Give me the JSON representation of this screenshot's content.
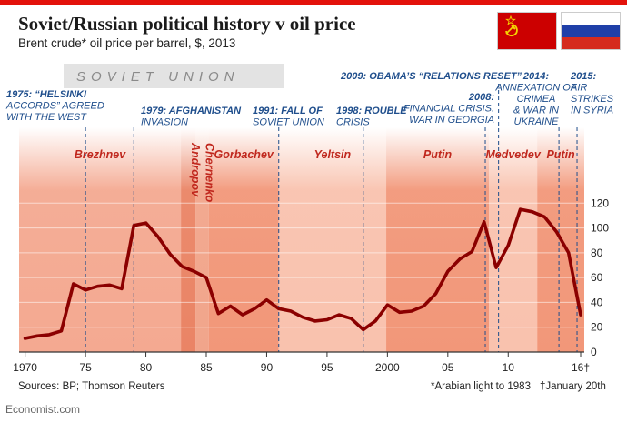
{
  "title": "Soviet/Russian political history v oil price",
  "subtitle": "Brent crude* oil price per barrel, $, 2013",
  "soviet_union_label": "SOVIET UNION",
  "sources": "Sources: BP; Thomson Reuters",
  "footnote_arabian": "*Arabian light to 1983",
  "footnote_january": "†January 20th",
  "publisher": "Economist.com",
  "colors": {
    "line": "#8b0000",
    "annotation": "#1f4e8c",
    "era_label": "#c0281e",
    "soviet_band": "#d9d9d9"
  },
  "chart_data": {
    "type": "line",
    "title": "Soviet/Russian political history v oil price",
    "xlabel": "",
    "ylabel": "Brent crude oil price per barrel, $, 2013",
    "xlim": [
      1969.5,
      2016.3
    ],
    "ylim": [
      0,
      140
    ],
    "x_ticks": [
      1970,
      1975,
      1980,
      1985,
      1990,
      1995,
      2000,
      2005,
      2010,
      2016
    ],
    "x_tick_labels": [
      "1970",
      "75",
      "80",
      "85",
      "90",
      "95",
      "2000",
      "05",
      "10",
      "16†"
    ],
    "y_ticks": [
      0,
      20,
      40,
      60,
      80,
      100,
      120
    ],
    "y_tick_labels": [
      "0",
      "20",
      "40",
      "60",
      "80",
      "100",
      "120"
    ],
    "series": [
      {
        "name": "Brent crude oil price",
        "x": [
          1970,
          1971,
          1972,
          1973,
          1974,
          1975,
          1976,
          1977,
          1978,
          1979,
          1980,
          1981,
          1982,
          1983,
          1984,
          1985,
          1986,
          1987,
          1988,
          1989,
          1990,
          1991,
          1992,
          1993,
          1994,
          1995,
          1996,
          1997,
          1998,
          1999,
          2000,
          2001,
          2002,
          2003,
          2004,
          2005,
          2006,
          2007,
          2008,
          2009,
          2010,
          2011,
          2012,
          2013,
          2014,
          2015,
          2016
        ],
        "values": [
          11,
          13,
          14,
          17,
          55,
          50,
          53,
          54,
          51,
          102,
          104,
          93,
          79,
          69,
          65,
          60,
          31,
          37,
          30,
          35,
          42,
          35,
          33,
          28,
          25,
          26,
          30,
          27,
          18,
          25,
          38,
          32,
          33,
          37,
          47,
          65,
          75,
          81,
          105,
          68,
          86,
          115,
          113,
          109,
          97,
          80,
          30
        ]
      }
    ],
    "eras": [
      {
        "label": "Brezhnev",
        "from": 1969.5,
        "to": 1982.9
      },
      {
        "label": "Andropov",
        "from": 1982.9,
        "to": 1984.1
      },
      {
        "label": "Chernenko",
        "from": 1984.1,
        "to": 1985.2
      },
      {
        "label": "Gorbachev",
        "from": 1985.2,
        "to": 1991.0
      },
      {
        "label": "Yeltsin",
        "from": 1991.0,
        "to": 1999.9
      },
      {
        "label": "Putin",
        "from": 1999.9,
        "to": 2008.4
      },
      {
        "label": "Medvedev",
        "from": 2008.4,
        "to": 2012.4
      },
      {
        "label": "Putin",
        "from": 2012.4,
        "to": 2016.3
      }
    ],
    "annotations": [
      {
        "year": 1975,
        "lines": [
          "1975: “HELSINKI",
          "ACCORDS” AGREED",
          "WITH THE WEST"
        ]
      },
      {
        "year": 1979,
        "lines": [
          "1979: AFGHANISTAN",
          "INVASION"
        ]
      },
      {
        "year": 1991,
        "lines": [
          "1991: FALL OF",
          "SOVIET UNION"
        ]
      },
      {
        "year": 1998,
        "lines": [
          "1998: ROUBLE",
          "CRISIS"
        ]
      },
      {
        "year": 2008,
        "lines": [
          "2008:",
          "FINANCIAL CRISIS.",
          "WAR IN GEORGIA"
        ]
      },
      {
        "year": 2009,
        "lines": [
          "2009: OBAMA’S “RELATIONS RESET”"
        ]
      },
      {
        "year": 2014,
        "lines": [
          "2014:",
          "ANNEXATION OF",
          "CRIMEA",
          "& WAR IN",
          "UKRAINE"
        ]
      },
      {
        "year": 2015,
        "lines": [
          "2015:",
          "AIR",
          "STRIKES",
          "IN SYRIA"
        ]
      }
    ]
  }
}
